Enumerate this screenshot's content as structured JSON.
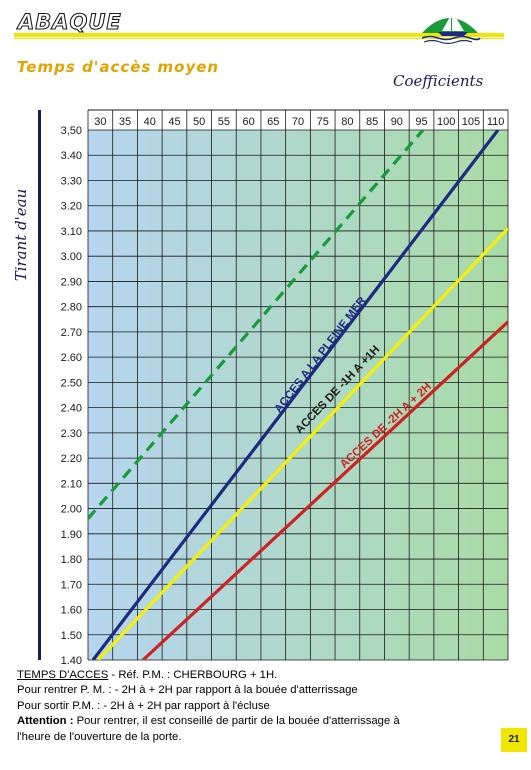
{
  "header": {
    "title": "ABAQUE",
    "subtitle": "Temps d'accès moyen"
  },
  "chart_data": {
    "type": "line",
    "title": "",
    "xlabel": "Coefficients",
    "ylabel": "Tirant d'eau",
    "x_ticks": [
      30,
      35,
      40,
      45,
      50,
      55,
      60,
      65,
      70,
      75,
      80,
      85,
      90,
      95,
      100,
      105,
      110
    ],
    "y_ticks": [
      "3,50",
      "3.40",
      "3.30",
      "3.20",
      "3.10",
      "3.00",
      "2.90",
      "2.80",
      "2.70",
      "2.60",
      "2.50",
      "2.40",
      "2.30",
      "2.20",
      "2.10",
      "2.00",
      "1.90",
      "1.80",
      "1.70",
      "1.60",
      "1.50",
      "1.40"
    ],
    "xlim": [
      28,
      112
    ],
    "ylim": [
      1.4,
      3.5
    ],
    "grid": true,
    "series": [
      {
        "name": "",
        "style": "dashed",
        "color": "#1a9a3a",
        "x": [
          28,
          95
        ],
        "y": [
          1.96,
          3.5
        ]
      },
      {
        "name": "ACCES A LA PLEINE MER",
        "style": "solid",
        "color": "#1c2a80",
        "x": [
          29,
          110
        ],
        "y": [
          1.4,
          3.5
        ]
      },
      {
        "name": "ACCES DE -1H A +1H",
        "style": "solid",
        "color": "#f5f00a",
        "x": [
          30,
          112
        ],
        "y": [
          1.4,
          3.11
        ]
      },
      {
        "name": "ACCES DE -2H A + 2H",
        "style": "solid",
        "color": "#cc2222",
        "x": [
          39,
          112
        ],
        "y": [
          1.4,
          2.74
        ]
      }
    ]
  },
  "footer": {
    "line1_label": "TEMPS D'ACCES",
    "line1_rest": " - Réf. P.M. : CHERBOURG + 1H.",
    "line2": "Pour rentrer P. M. : - 2H à + 2H par rapport à la bouée d'atterrissage",
    "line3": "Pour sortir P.M. : - 2H à + 2H par rapport à l'écluse",
    "line4_label": "Attention :",
    "line4_rest": " Pour rentrer, il est conseillé de partir de la bouée d'atterrissage à",
    "line5": "l'heure de l'ouverture de la porte."
  },
  "page_number": "21"
}
